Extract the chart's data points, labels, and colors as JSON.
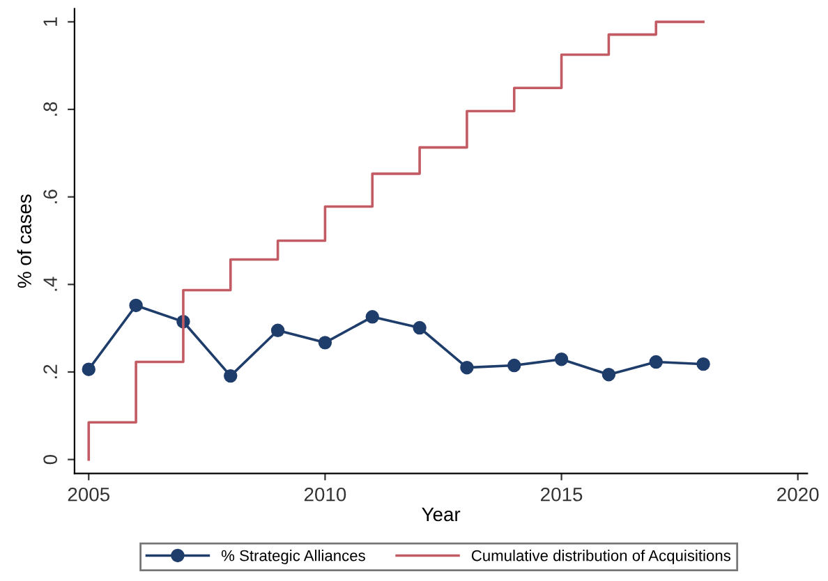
{
  "chart_data": {
    "type": "line",
    "xlabel": "Year",
    "ylabel": "% of cases",
    "xlim": [
      2004.7,
      2020.2
    ],
    "xticks": [
      2005,
      2010,
      2015,
      2020
    ],
    "ylim": [
      -0.032,
      1.03
    ],
    "yticks": [
      0,
      {
        "value": 0.2,
        "label": ".2"
      },
      {
        "value": 0.4,
        "label": ".4"
      },
      {
        "value": 0.6,
        "label": ".6"
      },
      {
        "value": 0.8,
        "label": ".8"
      },
      1
    ],
    "grid": false,
    "legend": "bottom",
    "series": [
      {
        "name": "% Strategic Alliances",
        "marker": "circle",
        "color": "#1f3d6b",
        "x": [
          2005,
          2006,
          2007,
          2008,
          2009,
          2010,
          2011,
          2012,
          2013,
          2014,
          2015,
          2016,
          2017,
          2018
        ],
        "values": [
          0.206,
          0.352,
          0.315,
          0.191,
          0.295,
          0.267,
          0.326,
          0.301,
          0.21,
          0.215,
          0.229,
          0.194,
          0.223,
          0.218
        ]
      },
      {
        "name": "Cumulative distribution of Acquisitions",
        "type": "step",
        "color": "#c25b63",
        "x": [
          2005,
          2005,
          2006,
          2007,
          2008,
          2009,
          2010,
          2011,
          2012,
          2013,
          2014,
          2015,
          2016,
          2017,
          2018
        ],
        "values": [
          0,
          0.085,
          0.223,
          0.387,
          0.457,
          0.5,
          0.578,
          0.653,
          0.713,
          0.796,
          0.849,
          0.925,
          0.971,
          1.0,
          1.0
        ]
      }
    ]
  }
}
